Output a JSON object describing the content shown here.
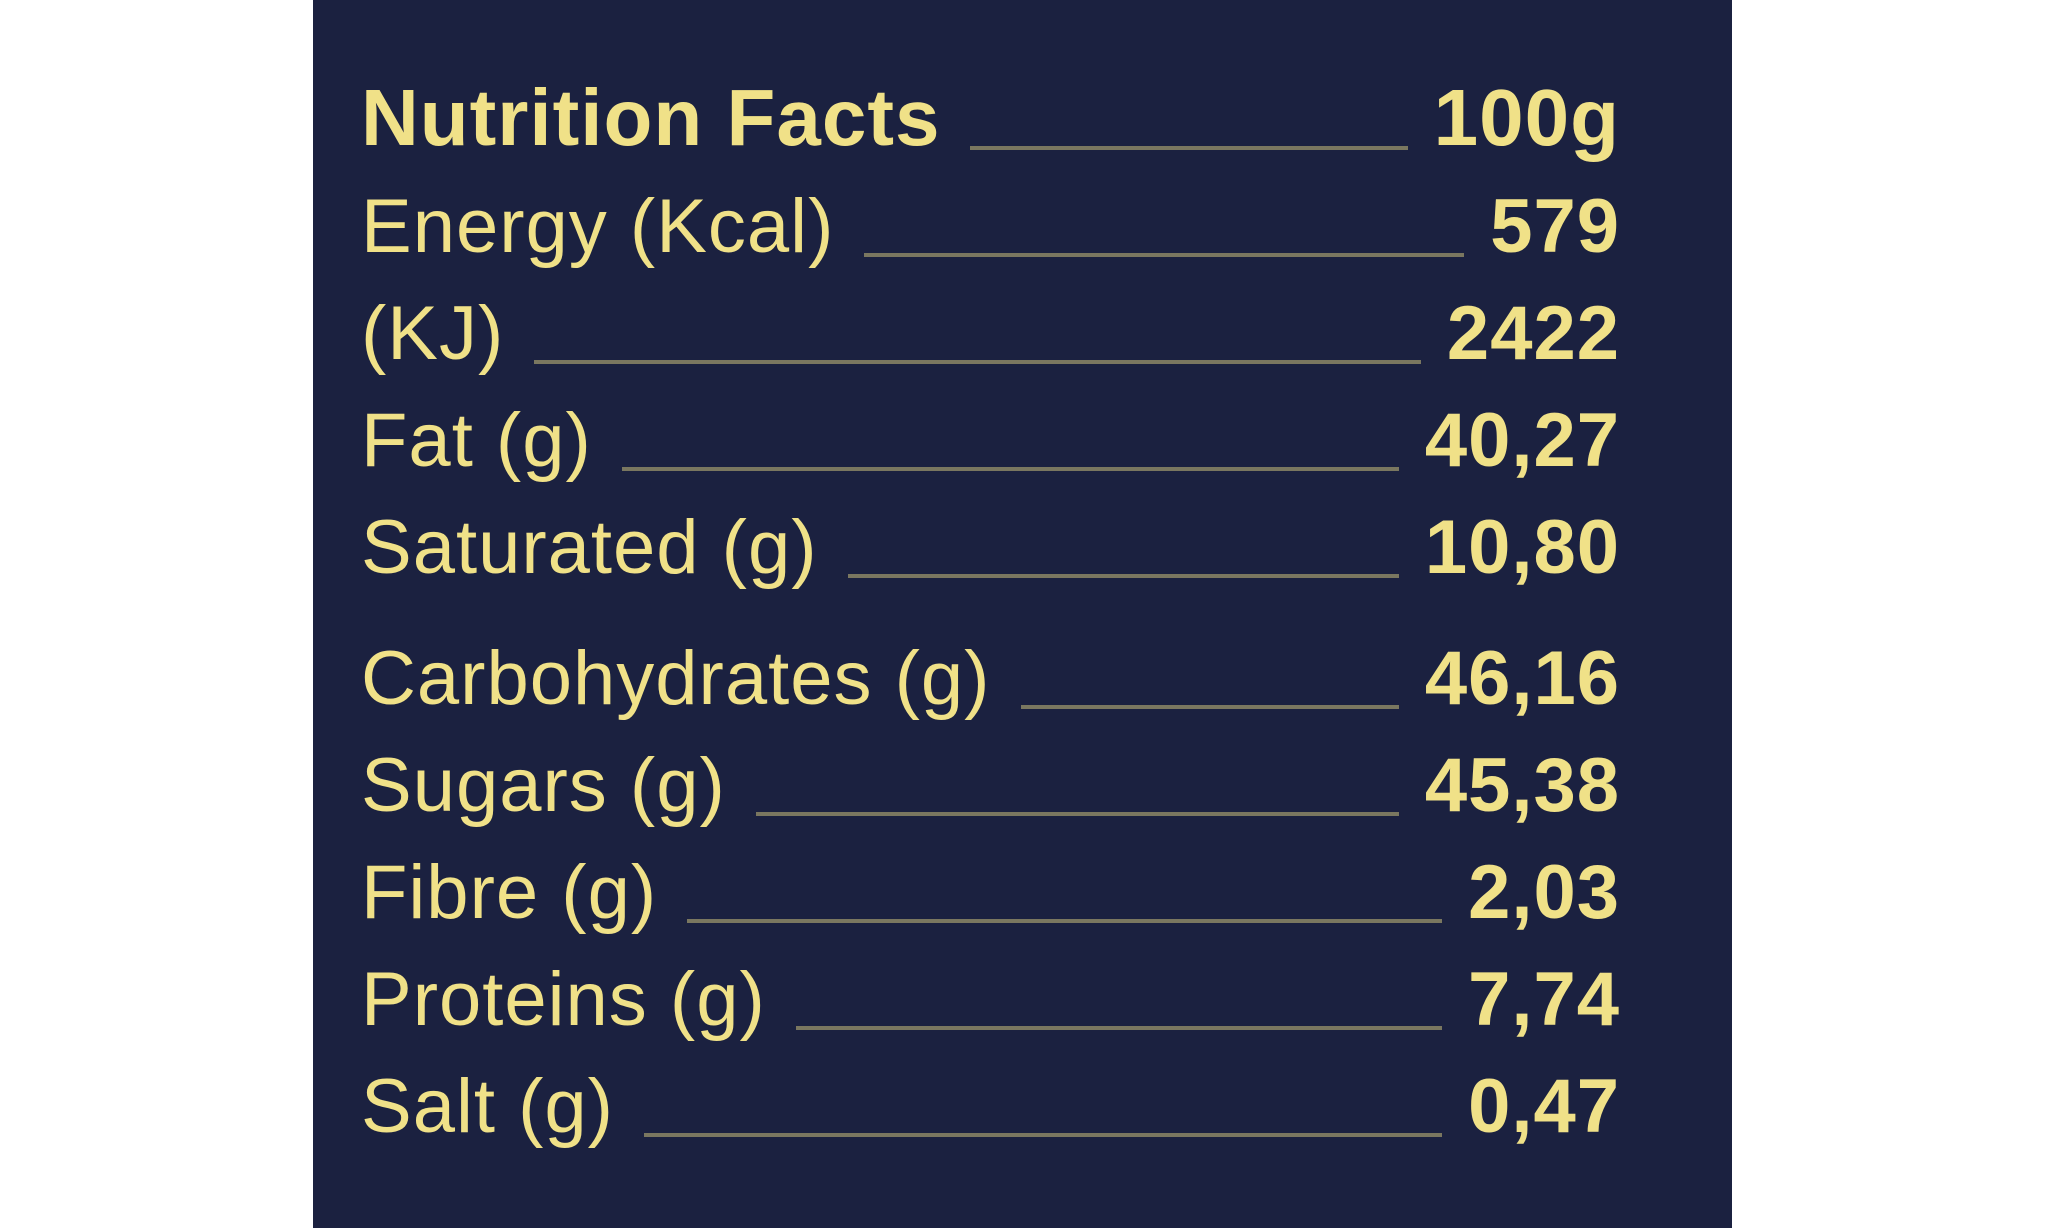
{
  "title": "Nutrition Facts",
  "serving_size": "100g",
  "colors": {
    "page_background": "#ffffff",
    "panel_background": "#1b2140",
    "accent_yellow": "#f0e188",
    "leader_line": "rgba(240,225,136,0.45)"
  },
  "rows": [
    {
      "label": "Nutrition Facts",
      "value": "100g",
      "emphasis": true,
      "group_break_before": false
    },
    {
      "label": "Energy (Kcal)",
      "value": "579",
      "emphasis": false,
      "group_break_before": false
    },
    {
      "label": "(KJ)",
      "value": "2422",
      "emphasis": false,
      "group_break_before": false
    },
    {
      "label": "Fat (g)",
      "value": "40,27",
      "emphasis": false,
      "group_break_before": false
    },
    {
      "label": "Saturated (g)",
      "value": "10,80",
      "emphasis": false,
      "group_break_before": false
    },
    {
      "label": "Carbohydrates (g)",
      "value": "46,16",
      "emphasis": false,
      "group_break_before": true
    },
    {
      "label": "Sugars (g)",
      "value": "45,38",
      "emphasis": false,
      "group_break_before": false
    },
    {
      "label": "Fibre (g)",
      "value": "2,03",
      "emphasis": false,
      "group_break_before": false
    },
    {
      "label": "Proteins (g)",
      "value": "7,74",
      "emphasis": false,
      "group_break_before": false
    },
    {
      "label": "Salt (g)",
      "value": "0,47",
      "emphasis": false,
      "group_break_before": false
    }
  ]
}
